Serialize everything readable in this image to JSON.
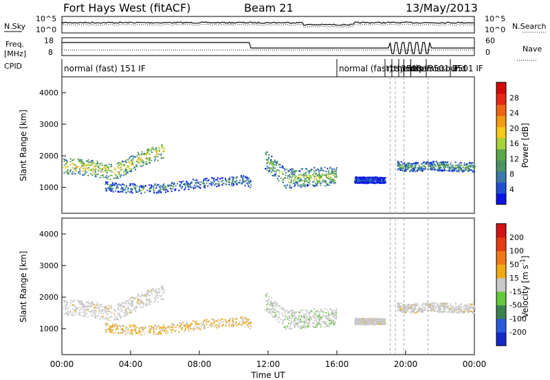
{
  "header": {
    "title": "Fort Hays West (fitACF)",
    "beam": "Beam 21",
    "date": "13/May/2013"
  },
  "labels": {
    "nsky": "N.Sky",
    "nsearch": "N.Search",
    "freq": "Freq.",
    "freq_unit": "[MHz]",
    "nave": "Nave",
    "cpid": "CPID"
  },
  "noise_panel": {
    "left_ticks": [
      "10^5",
      "10^0"
    ],
    "right_ticks": [
      "10^5",
      "10^0"
    ]
  },
  "freq_panel": {
    "left_ticks": [
      "18",
      "8"
    ],
    "right_ticks": [
      "60",
      "0"
    ]
  },
  "cpid_panel": {
    "labels": [
      {
        "text": "normal (fast) 151 IF",
        "hour": 0.0
      },
      {
        "text": "normal (fast)",
        "hour": 16.0
      },
      {
        "text": "rbsp",
        "hour": 18.8
      },
      {
        "text": "themis",
        "hour": 19.2
      },
      {
        "text": "3500 IF",
        "hour": 19.6
      },
      {
        "text": "rbsp",
        "hour": 19.9
      },
      {
        "text": "themissound",
        "hour": 20.3
      },
      {
        "text": "3501 IF",
        "hour": 21.2
      },
      {
        "text": "3501 IF",
        "hour": 22.6
      }
    ]
  },
  "chart_data": [
    {
      "type": "heatmap",
      "name": "Power",
      "ylabel": "Slant Range [km]",
      "xlabel": "Time UT",
      "ylim": [
        180,
        4500
      ],
      "xlim_hours": [
        0,
        24
      ],
      "y_ticks": [
        1000,
        2000,
        3000,
        4000
      ],
      "colorbar": {
        "title": "Power [dB]",
        "ticks": [
          "4",
          "8",
          "12",
          "16",
          "20",
          "24",
          "28"
        ],
        "colors": [
          "#0a14e6",
          "#2050d2",
          "#3a7aa8",
          "#4a9464",
          "#5aa84a",
          "#a8d23c",
          "#f5c81a",
          "#f59a14",
          "#f06414",
          "#e62814",
          "#d20a0a"
        ]
      },
      "scatter_bands": [
        {
          "x": [
            0,
            1.5,
            3,
            4.5,
            6
          ],
          "y": [
            1700,
            1650,
            1500,
            1900,
            2200
          ],
          "width": 250,
          "level": 0.55
        },
        {
          "x": [
            2.5,
            5,
            8,
            10.5,
            11
          ],
          "y": [
            1050,
            950,
            1150,
            1250,
            1150
          ],
          "width": 150,
          "level": 0.3
        },
        {
          "x": [
            11.8,
            13,
            14.5,
            16
          ],
          "y": [
            1900,
            1300,
            1350,
            1350
          ],
          "width": 300,
          "level": 0.45
        },
        {
          "x": [
            17,
            18,
            18.8
          ],
          "y": [
            1250,
            1250,
            1250
          ],
          "width": 100,
          "level": 0.15
        },
        {
          "x": [
            19.5,
            20.2,
            21.5,
            24
          ],
          "y": [
            1700,
            1650,
            1700,
            1650
          ],
          "width": 150,
          "level": 0.35
        }
      ]
    },
    {
      "type": "heatmap",
      "name": "Velocity",
      "ylabel": "Slant Range [km]",
      "xlabel": "Time UT",
      "ylim": [
        180,
        4500
      ],
      "xlim_hours": [
        0,
        24
      ],
      "y_ticks": [
        1000,
        2000,
        3000,
        4000
      ],
      "colorbar": {
        "title": "Velocity [m s^-1]",
        "ticks": [
          "200",
          "100",
          "50",
          "15",
          "-15",
          "-50",
          "-100",
          "-200"
        ],
        "colors": [
          "#1428c8",
          "#285adc",
          "#3c8250",
          "#64c83c",
          "#c8c8c8",
          "#f0aa14",
          "#f07814",
          "#e63c14",
          "#d21414"
        ]
      }
    }
  ],
  "x_axis": {
    "ticks": [
      "00:00",
      "04:00",
      "08:00",
      "12:00",
      "16:00",
      "20:00",
      "00:00"
    ],
    "label": "Time UT"
  }
}
